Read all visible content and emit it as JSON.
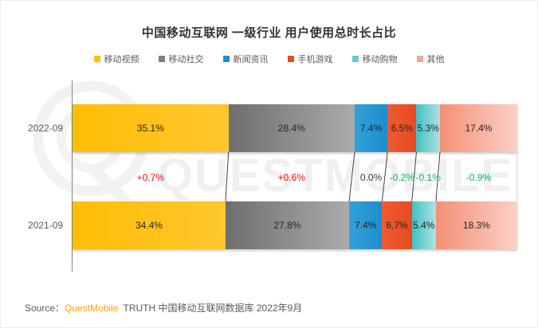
{
  "title": "中国移动互联网 一级行业 用户使用总时长占比",
  "watermark": {
    "text": "QUESTMOBILE",
    "logo": "questmobile-q-logo"
  },
  "source": {
    "prefix": "Source：",
    "brand": "QuestMobile",
    "suffix": " TRUTH 中国移动互联网数据库 2022年9月"
  },
  "chart_data": {
    "type": "bar",
    "subtype": "horizontal-stacked-comparison",
    "title": "中国移动互联网 一级行业 用户使用总时长占比",
    "legend_position": "top",
    "unit": "%",
    "categories": [
      "移动视频",
      "移动社交",
      "新闻资讯",
      "手机游戏",
      "移动购物",
      "其他"
    ],
    "series_colors": [
      {
        "name": "移动视频",
        "legend": "#FFC000",
        "from": "#FFBD05",
        "to": "#FFC droppable"
      },
      {
        "name": "移动社交",
        "legend": "#7F7F7F",
        "from": "#6E6E6E",
        "to": "#ABABAB"
      },
      {
        "name": "新闻资讯",
        "legend": "#1E8FD0",
        "from": "#33A1D8",
        "to": "#1D8DCE"
      },
      {
        "name": "手机游戏",
        "legend": "#E4501F",
        "from": "#EE5B31",
        "to": "#E64A20"
      },
      {
        "name": "移动购物",
        "legend": "#6BCACD",
        "from": "#41C0C4",
        "to": "#AEE1E2"
      },
      {
        "name": "其他",
        "legend": "#F2A696",
        "from": "#F49075",
        "to": "#FBD1C7"
      }
    ],
    "rows": [
      {
        "label": "2022-09",
        "values": [
          35.1,
          28.4,
          7.4,
          6.5,
          5.3,
          17.4
        ]
      },
      {
        "label": "2021-09",
        "values": [
          34.4,
          27.8,
          7.4,
          6.7,
          5.4,
          18.3
        ]
      }
    ],
    "deltas": [
      {
        "text": "+0.7%",
        "color": "#FF0000"
      },
      {
        "text": "+0.6%",
        "color": "#FF0000"
      },
      {
        "text": "0.0%",
        "color": "#333333"
      },
      {
        "text": "-0.2%",
        "color": "#00B050"
      },
      {
        "text": "-0.1%",
        "color": "#00B050"
      },
      {
        "text": "-0.9%",
        "color": "#00B050"
      }
    ]
  }
}
